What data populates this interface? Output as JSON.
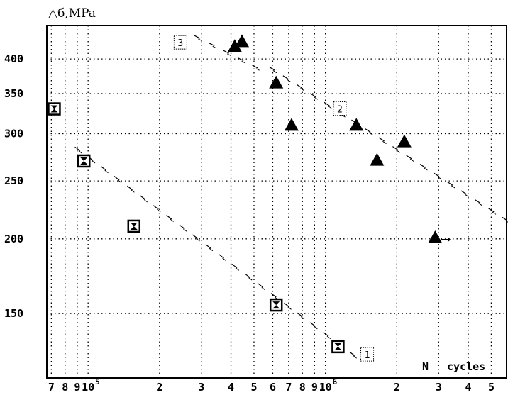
{
  "chart_data": {
    "type": "scatter",
    "title": "",
    "ylabel": "△б,MPa",
    "xlabel_letter": "N",
    "xlabel_unit": "cycles",
    "xscale": "log",
    "yscale": "log",
    "xlim": [
      67000,
      5800000
    ],
    "ylim": [
      117,
      455
    ],
    "grid": true,
    "yticks": [
      {
        "value": 150,
        "label": "150"
      },
      {
        "value": 200,
        "label": "200"
      },
      {
        "value": 250,
        "label": "250"
      },
      {
        "value": 300,
        "label": "300"
      },
      {
        "value": 350,
        "label": "350"
      },
      {
        "value": 400,
        "label": "400"
      }
    ],
    "xticks": [
      {
        "value": 70000,
        "label": "7"
      },
      {
        "value": 80000,
        "label": "8"
      },
      {
        "value": 90000,
        "label": "9"
      },
      {
        "value": 100000,
        "label": "10",
        "sup": "5"
      },
      {
        "value": 200000,
        "label": "2"
      },
      {
        "value": 300000,
        "label": "3"
      },
      {
        "value": 400000,
        "label": "4"
      },
      {
        "value": 500000,
        "label": "5"
      },
      {
        "value": 600000,
        "label": "6"
      },
      {
        "value": 700000,
        "label": "7"
      },
      {
        "value": 800000,
        "label": "8"
      },
      {
        "value": 900000,
        "label": "9"
      },
      {
        "value": 1000000,
        "label": "10",
        "sup": "6"
      },
      {
        "value": 2000000,
        "label": "2"
      },
      {
        "value": 3000000,
        "label": "3"
      },
      {
        "value": 4000000,
        "label": "4"
      },
      {
        "value": 5000000,
        "label": "5"
      }
    ],
    "grid_x": [
      70000,
      80000,
      90000,
      100000,
      200000,
      300000,
      400000,
      500000,
      600000,
      700000,
      800000,
      900000,
      1000000,
      2000000,
      3000000,
      4000000,
      5000000
    ],
    "grid_y": [
      150,
      200,
      250,
      300,
      350,
      400
    ],
    "series": [
      {
        "marker": "hourglass-square",
        "points": [
          {
            "x": 72000,
            "y": 330
          },
          {
            "x": 96000,
            "y": 270
          },
          {
            "x": 156000,
            "y": 210
          },
          {
            "x": 620000,
            "y": 155
          },
          {
            "x": 1130000,
            "y": 132
          }
        ]
      },
      {
        "marker": "filled-triangle",
        "points": [
          {
            "x": 415000,
            "y": 420
          },
          {
            "x": 445000,
            "y": 428
          },
          {
            "x": 620000,
            "y": 365
          },
          {
            "x": 720000,
            "y": 310
          },
          {
            "x": 1350000,
            "y": 310
          },
          {
            "x": 1650000,
            "y": 271
          },
          {
            "x": 2150000,
            "y": 291
          },
          {
            "x": 2900000,
            "y": 201,
            "runout": true
          }
        ]
      }
    ],
    "lines": [
      {
        "tag": "1",
        "from": {
          "x": 88000,
          "y": 285
        },
        "to": {
          "x": 1420000,
          "y": 125
        }
      },
      {
        "tag": "2",
        "from": {
          "x": 580000,
          "y": 388
        },
        "to": {
          "x": 5800000,
          "y": 215
        }
      },
      {
        "tag": "3",
        "from": {
          "x": 280000,
          "y": 438
        },
        "to": {
          "x": 520000,
          "y": 386
        }
      }
    ],
    "line_tags": [
      {
        "text": "1",
        "x": 1500000,
        "y": 128
      },
      {
        "text": "2",
        "x": 1150000,
        "y": 330
      },
      {
        "text": "3",
        "x": 245000,
        "y": 426
      }
    ]
  }
}
